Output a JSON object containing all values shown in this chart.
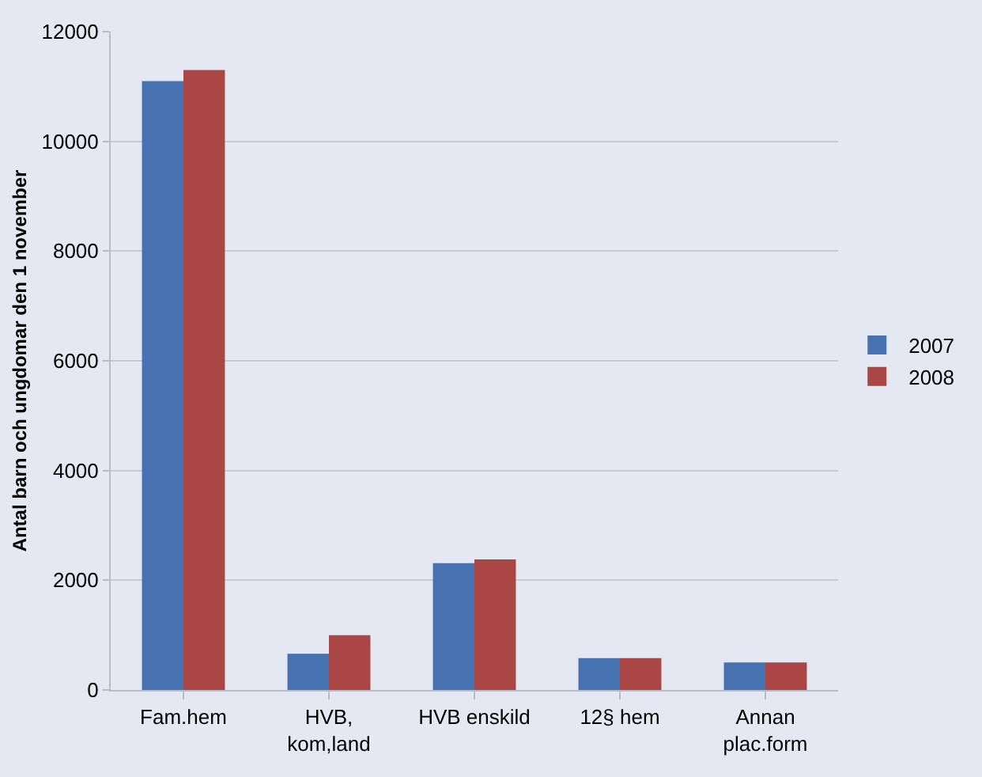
{
  "chart_data": {
    "type": "bar",
    "ylabel": "Antal barn och ungdomar den 1 november",
    "categories": [
      "Fam.hem",
      "HVB,\nkom,land",
      "HVB enskild",
      "12§ hem",
      "Annan\nplac.form"
    ],
    "series": [
      {
        "name": "2007",
        "color": "#4572b0",
        "values": [
          11100,
          660,
          2310,
          580,
          500
        ]
      },
      {
        "name": "2008",
        "color": "#aa4644",
        "values": [
          11300,
          1000,
          2380,
          580,
          500
        ]
      }
    ],
    "ylim": [
      0,
      12000
    ],
    "yticks": [
      0,
      2000,
      4000,
      6000,
      8000,
      10000,
      12000
    ],
    "grid": "y",
    "legend": "right"
  }
}
